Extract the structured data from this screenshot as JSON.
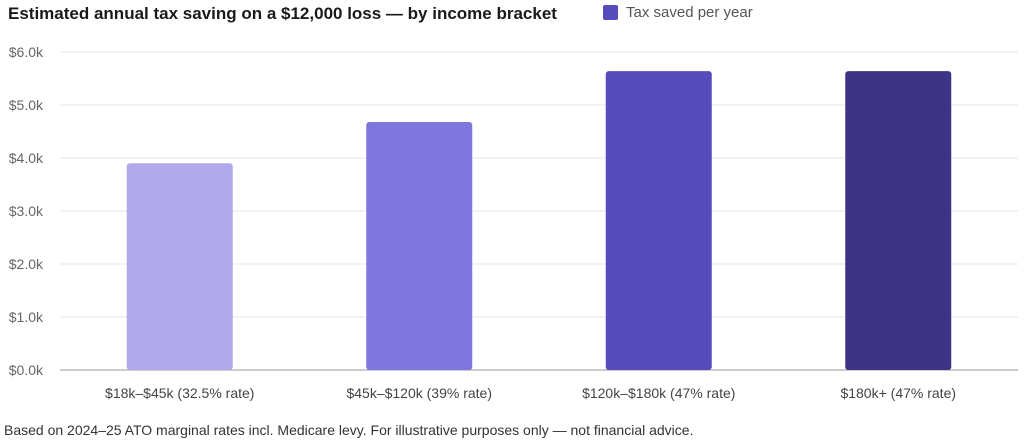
{
  "chart_data": {
    "type": "bar",
    "title": "Estimated annual tax saving on a $12,000 loss — by income bracket",
    "categories": [
      "$18k–$45k (32.5% rate)",
      "$45k–$120k (39% rate)",
      "$120k–$180k (47% rate)",
      "$180k+ (47% rate)"
    ],
    "series": [
      {
        "name": "Tax saved per year",
        "values": [
          3900,
          4680,
          5640,
          5640
        ]
      }
    ],
    "bar_colors": [
      "#b2a9ec",
      "#7f76de",
      "#574bbd",
      "#3d3487"
    ],
    "legend_color": "#574bbd",
    "ylim": [
      0,
      6000
    ],
    "yticks": [
      0,
      1000,
      2000,
      3000,
      4000,
      5000,
      6000
    ],
    "ytick_labels": [
      "$0.0k",
      "$1.0k",
      "$2.0k",
      "$3.0k",
      "$4.0k",
      "$5.0k",
      "$6.0k"
    ],
    "xlabel": "",
    "ylabel": "",
    "grid": true,
    "legend_position": "top-right"
  },
  "footnote": "Based on 2024–25 ATO marginal rates incl. Medicare levy. For illustrative purposes only — not financial advice."
}
